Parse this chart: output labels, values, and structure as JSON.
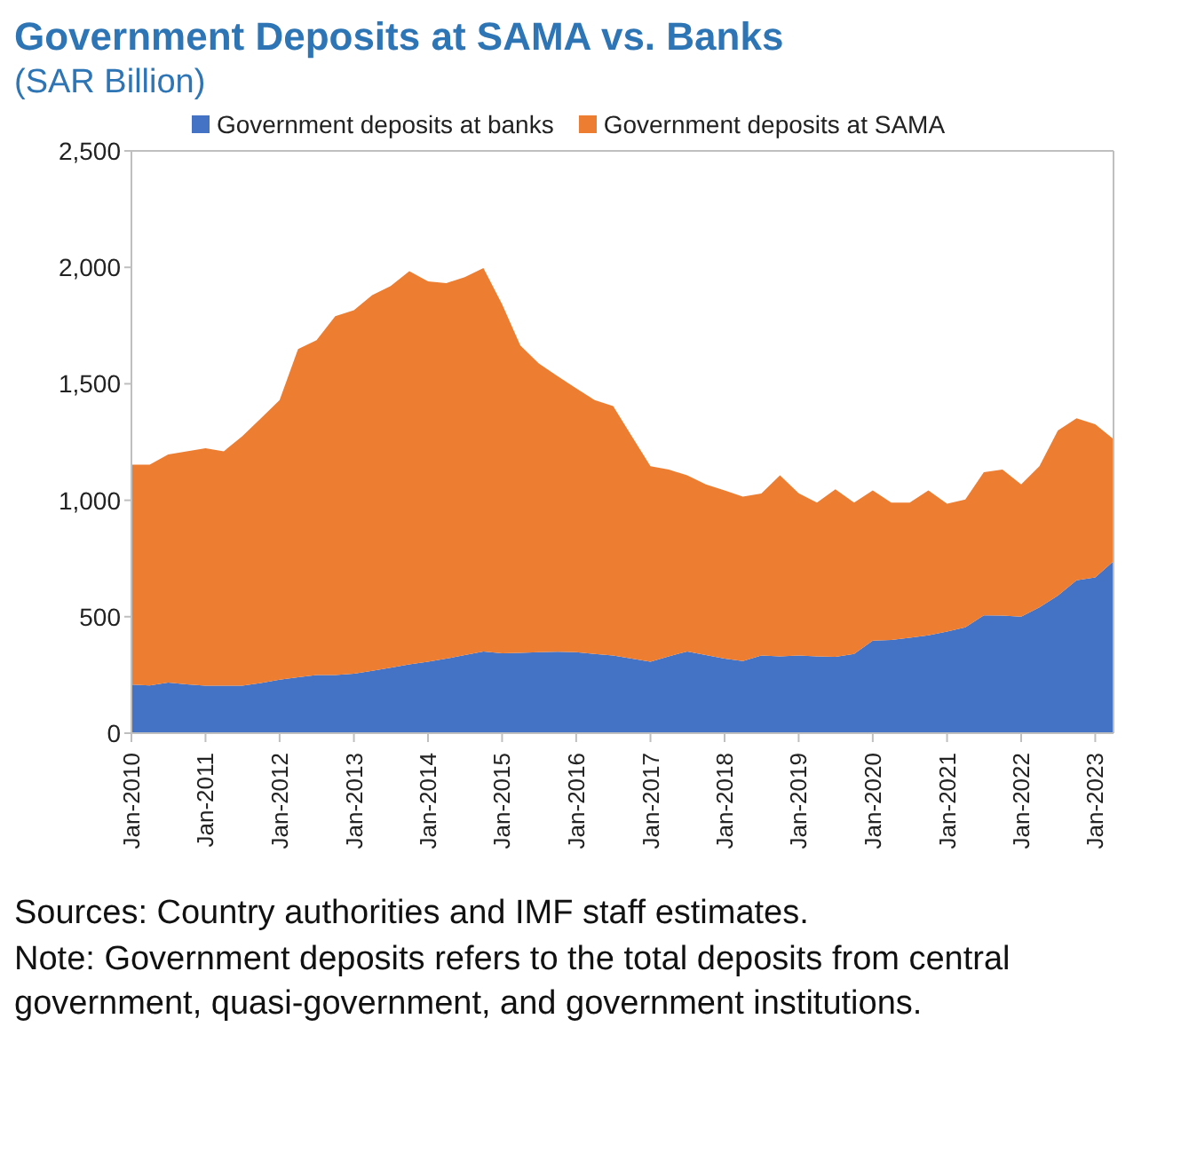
{
  "chart_data": {
    "type": "area",
    "stacked": true,
    "title": "Government Deposits at SAMA vs. Banks",
    "subtitle": "(SAR Billion)",
    "x": [
      "2010-01",
      "2010-04",
      "2010-07",
      "2010-10",
      "2011-01",
      "2011-04",
      "2011-07",
      "2011-10",
      "2012-01",
      "2012-04",
      "2012-07",
      "2012-10",
      "2013-01",
      "2013-04",
      "2013-07",
      "2013-10",
      "2014-01",
      "2014-04",
      "2014-07",
      "2014-10",
      "2015-01",
      "2015-04",
      "2015-07",
      "2015-10",
      "2016-01",
      "2016-04",
      "2016-07",
      "2016-10",
      "2017-01",
      "2017-04",
      "2017-07",
      "2017-10",
      "2018-01",
      "2018-04",
      "2018-07",
      "2018-10",
      "2019-01",
      "2019-04",
      "2019-07",
      "2019-10",
      "2020-01",
      "2020-04",
      "2020-07",
      "2020-10",
      "2021-01",
      "2021-04",
      "2021-07",
      "2021-10",
      "2022-01",
      "2022-04",
      "2022-07",
      "2022-10",
      "2023-01",
      "2023-04"
    ],
    "series": [
      {
        "name": "Government deposits at banks",
        "color": "#4472c4",
        "values": [
          209,
          205,
          217,
          210,
          204,
          204,
          204,
          215,
          230,
          240,
          250,
          250,
          255,
          268,
          281,
          295,
          307,
          320,
          335,
          351,
          343,
          345,
          348,
          350,
          348,
          340,
          333,
          320,
          307,
          330,
          351,
          335,
          320,
          310,
          333,
          330,
          333,
          330,
          328,
          340,
          397,
          400,
          410,
          420,
          436,
          454,
          506,
          505,
          500,
          540,
          591,
          656,
          669,
          738
        ]
      },
      {
        "name": "Government deposits at SAMA",
        "color": "#ed7d31",
        "values": [
          944,
          948,
          980,
          1000,
          1019,
          1006,
          1071,
          1137,
          1200,
          1409,
          1437,
          1540,
          1561,
          1613,
          1639,
          1689,
          1633,
          1612,
          1623,
          1646,
          1499,
          1319,
          1239,
          1183,
          1133,
          1090,
          1071,
          955,
          839,
          802,
          756,
          733,
          722,
          706,
          696,
          777,
          697,
          660,
          719,
          650,
          645,
          590,
          580,
          622,
          549,
          549,
          614,
          627,
          568,
          606,
          709,
          696,
          657,
          524
        ]
      }
    ],
    "xlim": [
      "2010-01",
      "2023-04"
    ],
    "xticks": [
      {
        "value": "2010-01",
        "label": "Jan-2010"
      },
      {
        "value": "2011-01",
        "label": "Jan-2011"
      },
      {
        "value": "2012-01",
        "label": "Jan-2012"
      },
      {
        "value": "2013-01",
        "label": "Jan-2013"
      },
      {
        "value": "2014-01",
        "label": "Jan-2014"
      },
      {
        "value": "2015-01",
        "label": "Jan-2015"
      },
      {
        "value": "2016-01",
        "label": "Jan-2016"
      },
      {
        "value": "2017-01",
        "label": "Jan-2017"
      },
      {
        "value": "2018-01",
        "label": "Jan-2018"
      },
      {
        "value": "2019-01",
        "label": "Jan-2019"
      },
      {
        "value": "2020-01",
        "label": "Jan-2020"
      },
      {
        "value": "2021-01",
        "label": "Jan-2021"
      },
      {
        "value": "2022-01",
        "label": "Jan-2022"
      },
      {
        "value": "2023-01",
        "label": "Jan-2023"
      }
    ],
    "ylim": [
      0,
      2500
    ],
    "yticks": [
      0,
      500,
      {
        "value": 1000,
        "label": "1,000"
      },
      {
        "value": 1500,
        "label": "1,500"
      },
      {
        "value": 2000,
        "label": "2,000"
      },
      {
        "value": 2500,
        "label": "2,500"
      }
    ],
    "legend": "top",
    "annotations": [
      "Sources: Country authorities and IMF staff estimates.",
      "Note: Government deposits refers to the total deposits from central government, quasi-government, and government institutions."
    ]
  }
}
